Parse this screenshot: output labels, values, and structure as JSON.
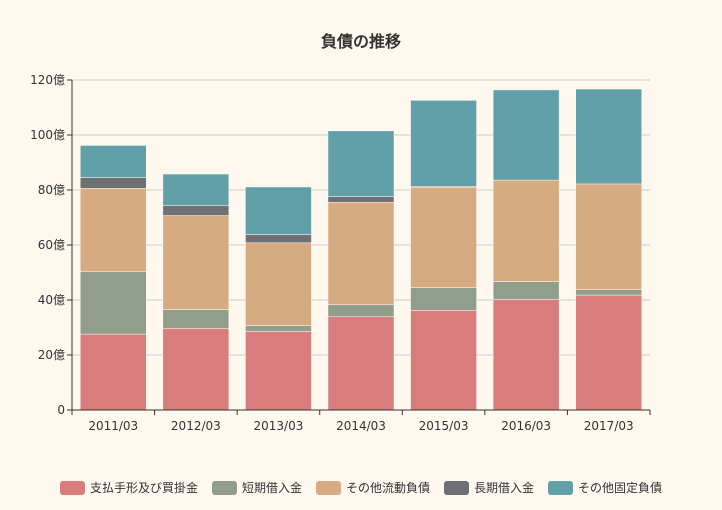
{
  "chart_data": {
    "type": "bar",
    "stacked": true,
    "title": "負債の推移",
    "xlabel": "",
    "ylabel": "",
    "ylim": [
      0,
      120
    ],
    "yticks": [
      "0",
      "20億",
      "40億",
      "60億",
      "80億",
      "100億",
      "120億"
    ],
    "ytick_values": [
      0,
      20,
      40,
      60,
      80,
      100,
      120
    ],
    "categories": [
      "2011/03",
      "2012/03",
      "2013/03",
      "2014/03",
      "2015/03",
      "2016/03",
      "2017/03"
    ],
    "grid": true,
    "legend_position": "bottom",
    "series": [
      {
        "name": "支払手形及び買掛金",
        "color": "#d87c7c",
        "values": [
          27.6,
          29.7,
          28.6,
          33.9,
          36.2,
          40.2,
          41.8
        ]
      },
      {
        "name": "短期借入金",
        "color": "#919e8b",
        "values": [
          22.7,
          6.8,
          2.1,
          4.4,
          8.3,
          6.5,
          2.0
        ]
      },
      {
        "name": "その他流動負債",
        "color": "#d7ab82",
        "values": [
          30.3,
          34.2,
          30.1,
          37.2,
          36.5,
          36.9,
          38.4
        ]
      },
      {
        "name": "長期借入金",
        "color": "#6e7074",
        "values": [
          3.9,
          3.6,
          3.0,
          2.1,
          0.3,
          0,
          0
        ]
      },
      {
        "name": "その他固定負債",
        "color": "#61a0a8",
        "values": [
          11.7,
          11.5,
          17.3,
          23.9,
          31.3,
          32.8,
          34.5
        ]
      }
    ]
  }
}
